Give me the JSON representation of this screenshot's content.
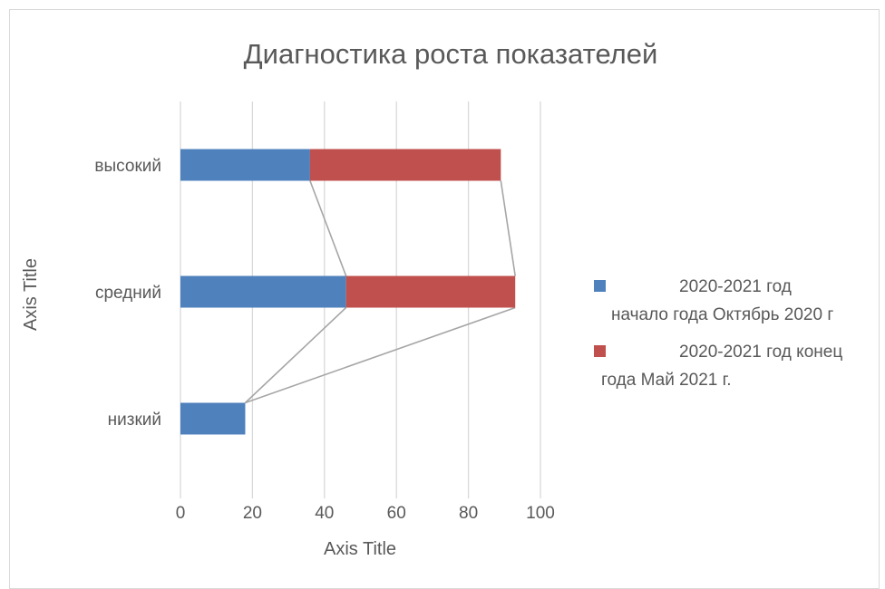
{
  "chart_data": {
    "type": "bar",
    "orientation": "horizontal",
    "stacked": true,
    "title": "Диагностика  роста показателей",
    "xlabel": "Axis Title",
    "ylabel": "Axis Title",
    "xlim": [
      0,
      100
    ],
    "x_ticks": [
      "0",
      "20",
      "40",
      "60",
      "80",
      "100"
    ],
    "grid": true,
    "legend_position": "right",
    "series_lines": true,
    "categories": [
      "низкий",
      "средний",
      "высокий"
    ],
    "series": [
      {
        "name_lines": [
          "2020-2021 год",
          "начало года Октябрь 2020 г"
        ],
        "color": "#4f81bd",
        "values": [
          18,
          46,
          36
        ]
      },
      {
        "name_lines": [
          "2020-2021 год конец",
          "года Май 2021 г."
        ],
        "color": "#c0504d",
        "values": [
          0,
          47,
          53
        ]
      }
    ]
  }
}
